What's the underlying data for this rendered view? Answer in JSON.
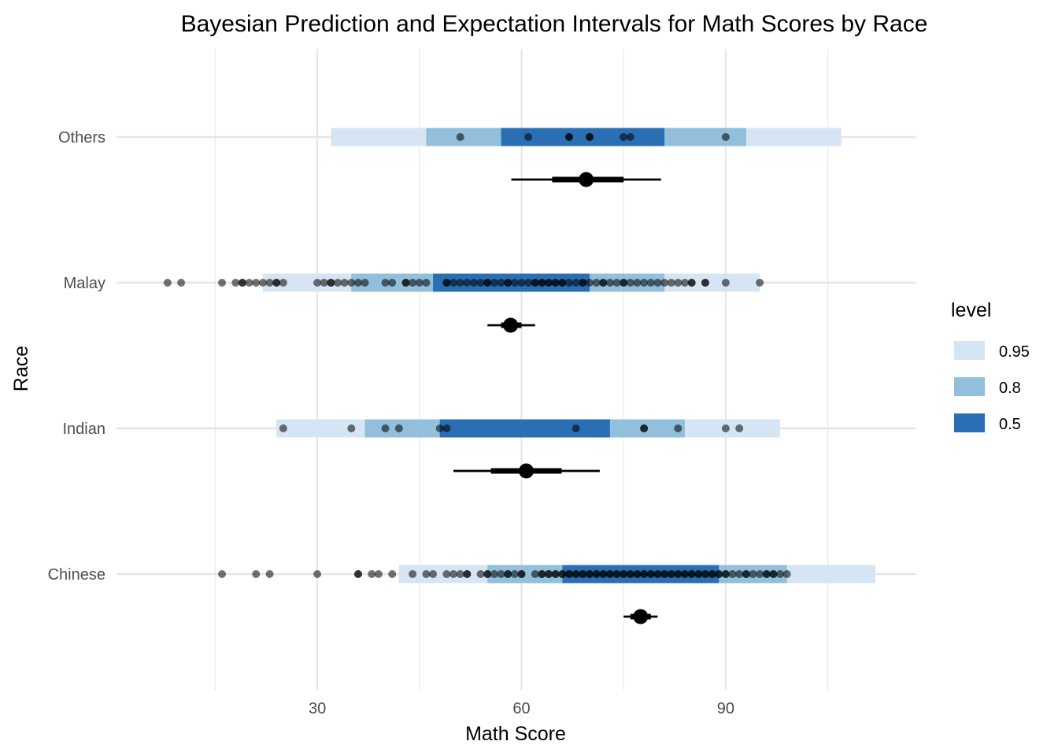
{
  "chart_data": {
    "type": "interval",
    "title": "Bayesian Prediction and Expectation Intervals for Math Scores by Race",
    "xlabel": "Math Score",
    "ylabel": "Race",
    "xlim": [
      0.5,
      118
    ],
    "x_ticks": [
      30,
      60,
      90
    ],
    "x_tick_labels": [
      "30",
      "60",
      "90"
    ],
    "x_minor_gridlines": [
      15,
      45,
      75,
      105
    ],
    "categories": [
      "Chinese",
      "Indian",
      "Malay",
      "Others"
    ],
    "grid": true,
    "legend": {
      "title": "level",
      "position": "right",
      "entries": [
        {
          "label": "0.95",
          "color": "#d6e5f4"
        },
        {
          "label": "0.8",
          "color": "#91bfdc"
        },
        {
          "label": "0.5",
          "color": "#2a6fb4"
        }
      ]
    },
    "prediction_intervals": [
      {
        "category": "Chinese",
        "p95": [
          42,
          112
        ],
        "p80": [
          55,
          99
        ],
        "p50": [
          66,
          89
        ]
      },
      {
        "category": "Indian",
        "p95": [
          24,
          98
        ],
        "p80": [
          37,
          84
        ],
        "p50": [
          48,
          73
        ]
      },
      {
        "category": "Malay",
        "p95": [
          22,
          95
        ],
        "p80": [
          35,
          81
        ],
        "p50": [
          47,
          70
        ]
      },
      {
        "category": "Others",
        "p95": [
          32,
          107
        ],
        "p80": [
          46,
          93
        ],
        "p50": [
          57,
          81
        ]
      }
    ],
    "expectation_intervals": [
      {
        "category": "Chinese",
        "mean": 77.5,
        "p66": [
          76,
          79
        ],
        "p95": [
          75,
          80
        ]
      },
      {
        "category": "Indian",
        "mean": 60.7,
        "p66": [
          55.5,
          65.9
        ],
        "p95": [
          50,
          71.5
        ]
      },
      {
        "category": "Malay",
        "mean": 58.4,
        "p66": [
          57,
          60
        ],
        "p95": [
          55,
          62
        ]
      },
      {
        "category": "Others",
        "mean": 69.5,
        "p66": [
          64.5,
          75
        ],
        "p95": [
          58.5,
          80.5
        ]
      }
    ],
    "observations": {
      "Others": [
        51,
        61,
        67,
        67,
        70,
        70,
        75,
        76,
        90
      ],
      "Malay": [
        8,
        10,
        16,
        18,
        19,
        19,
        20,
        21,
        22,
        23,
        24,
        24,
        25,
        30,
        31,
        32,
        32,
        33,
        34,
        35,
        36,
        37,
        40,
        41,
        43,
        43,
        44,
        45,
        46,
        49,
        49,
        50,
        51,
        52,
        53,
        54,
        55,
        55,
        56,
        57,
        58,
        58,
        59,
        60,
        61,
        62,
        62,
        63,
        63,
        64,
        64,
        65,
        65,
        66,
        66,
        67,
        68,
        69,
        69,
        70,
        71,
        72,
        72,
        73,
        74,
        75,
        75,
        76,
        77,
        78,
        79,
        80,
        81,
        82,
        83,
        84,
        85,
        85,
        87,
        87,
        90,
        95
      ],
      "Indian": [
        25,
        35,
        40,
        42,
        48,
        49,
        68,
        78,
        78,
        83,
        90,
        92
      ],
      "Chinese": [
        16,
        21,
        23,
        30,
        36,
        36,
        38,
        39,
        41,
        44,
        46,
        47,
        49,
        50,
        51,
        52,
        52,
        54,
        55,
        55,
        56,
        57,
        58,
        58,
        59,
        60,
        60,
        62,
        63,
        63,
        64,
        64,
        65,
        65,
        66,
        66,
        67,
        67,
        68,
        68,
        69,
        69,
        70,
        70,
        71,
        71,
        72,
        72,
        73,
        73,
        74,
        74,
        75,
        75,
        76,
        76,
        77,
        77,
        78,
        78,
        79,
        79,
        80,
        80,
        81,
        81,
        82,
        82,
        83,
        83,
        84,
        84,
        85,
        85,
        86,
        86,
        87,
        87,
        88,
        88,
        89,
        89,
        90,
        90,
        91,
        92,
        93,
        93,
        94,
        95,
        96,
        96,
        97,
        97,
        98,
        99
      ]
    }
  }
}
